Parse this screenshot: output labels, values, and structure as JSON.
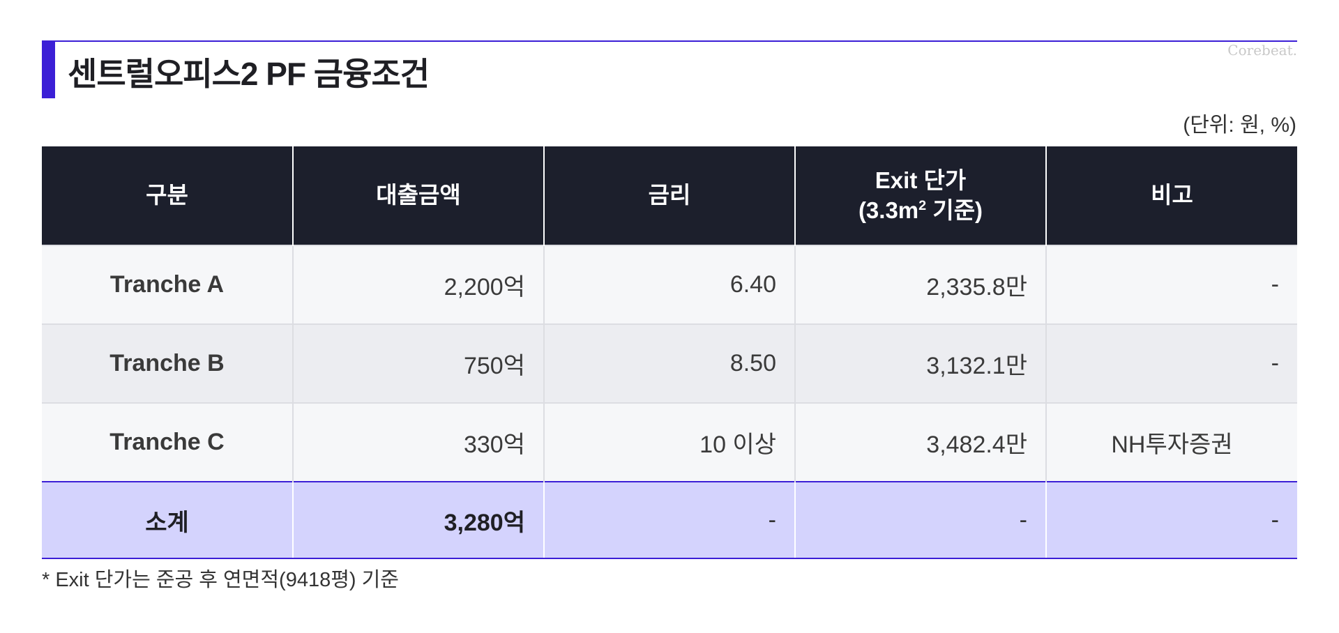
{
  "title": "센트럴오피스2 PF 금융조건",
  "watermark": "Corebeat.",
  "unit": "(단위: 원, %)",
  "table": {
    "headers": {
      "col1": "구분",
      "col2": "대출금액",
      "col3": "금리",
      "col4_line1": "Exit 단가",
      "col4_line2_pre": "(3.3m",
      "col4_line2_sup": "2",
      "col4_line2_post": " 기준)",
      "col5": "비고"
    },
    "rows": [
      {
        "category": "Tranche A",
        "amount": "2,200억",
        "rate": "6.40",
        "exit_price": "2,335.8만",
        "note": "-"
      },
      {
        "category": "Tranche B",
        "amount": "750억",
        "rate": "8.50",
        "exit_price": "3,132.1만",
        "note": "-"
      },
      {
        "category": "Tranche C",
        "amount": "330억",
        "rate": "10 이상",
        "exit_price": "3,482.4만",
        "note": "NH투자증권"
      }
    ],
    "total": {
      "category": "소계",
      "amount": "3,280억",
      "rate": "-",
      "exit_price": "-",
      "note": "-"
    }
  },
  "footnote": "* Exit 단가는 준공 후 연면적(9418평) 기준",
  "colors": {
    "accent": "#3b1fd6",
    "header_bg": "#1c1f2c",
    "total_bg": "#d4d3fd"
  }
}
